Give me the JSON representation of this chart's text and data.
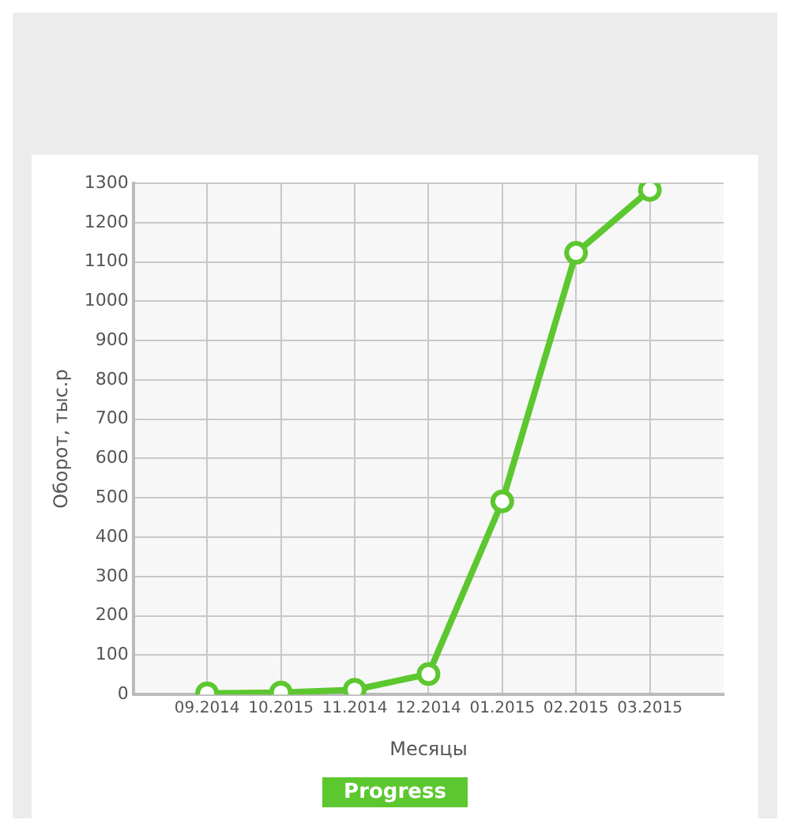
{
  "chart_data": {
    "type": "line",
    "xlabel": "Месяцы",
    "ylabel": "Оборот, тыс.р",
    "categories": [
      "09.2014",
      "10.2015",
      "11.2014",
      "12.2014",
      "01.2015",
      "02.2015",
      "03.2015"
    ],
    "series": [
      {
        "color": "#5cc72e",
        "values": [
          3,
          5,
          12,
          52,
          491,
          1123,
          1283
        ]
      }
    ],
    "ylim": [
      0,
      1300
    ],
    "yticks": [
      0,
      100,
      200,
      300,
      400,
      500,
      600,
      700,
      800,
      900,
      1000,
      1100,
      1200,
      1300
    ],
    "grid": true,
    "legend": false,
    "marker": "circle",
    "line_style": "solid",
    "annotations": [
      "Progress"
    ]
  }
}
